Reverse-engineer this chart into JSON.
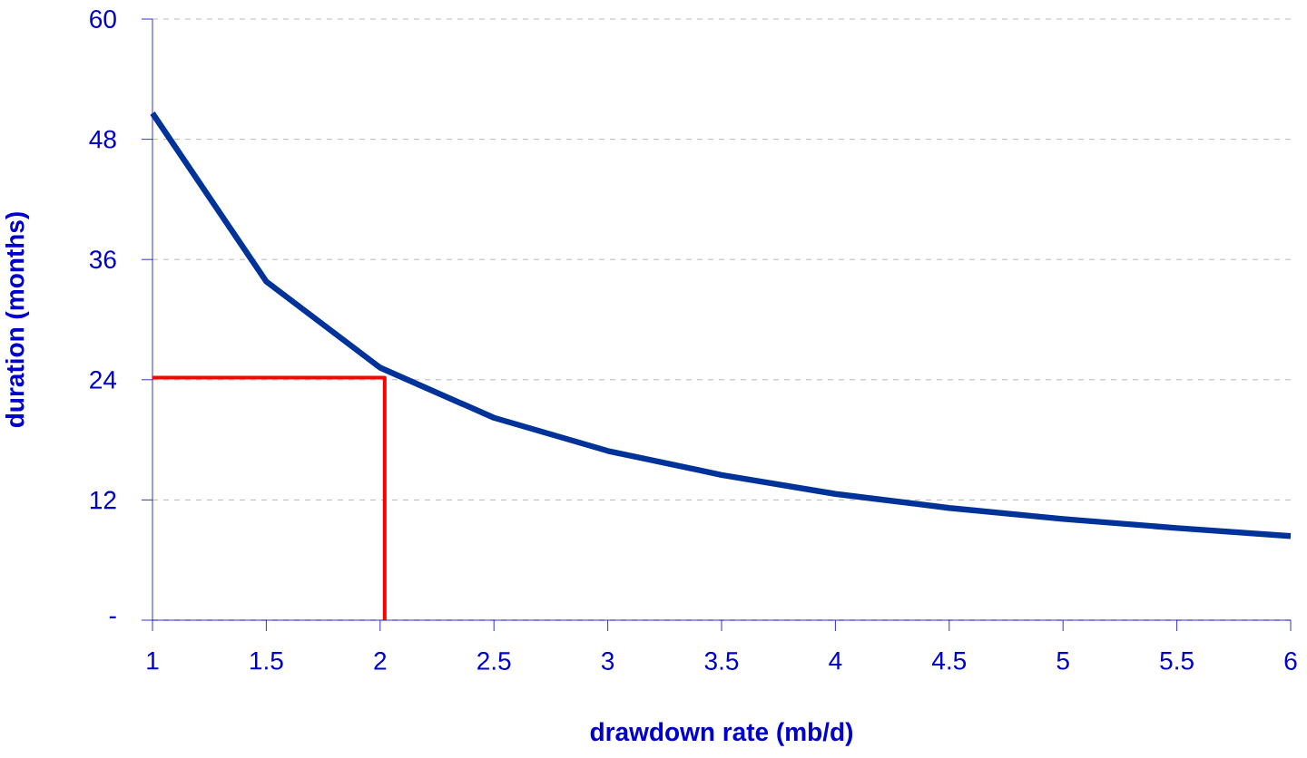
{
  "chart_data": {
    "type": "line",
    "xlabel": "drawdown rate (mb/d)",
    "ylabel": "duration (months)",
    "xlim": [
      1,
      6
    ],
    "xticks": [
      1,
      1.5,
      2,
      2.5,
      3,
      3.5,
      4,
      4.5,
      5,
      5.5,
      6
    ],
    "ylim": [
      0,
      60
    ],
    "yticks": [
      {
        "value": 0,
        "label": "-"
      },
      12,
      24,
      36,
      48,
      60
    ],
    "grid": "y",
    "line_style": "solid",
    "marker": "none",
    "series": [
      {
        "color": "#003399",
        "x": [
          1,
          1.5,
          2,
          2.5,
          3,
          3.5,
          4,
          4.5,
          5,
          5.5,
          6
        ],
        "values": [
          50.6,
          33.8,
          25.2,
          20.2,
          16.9,
          14.5,
          12.6,
          11.2,
          10.1,
          9.2,
          8.4
        ]
      },
      {
        "type": "line",
        "color": "#ff0000",
        "x": [
          1,
          2.02,
          2.02
        ],
        "values": [
          24.2,
          24.2,
          0
        ]
      }
    ]
  }
}
